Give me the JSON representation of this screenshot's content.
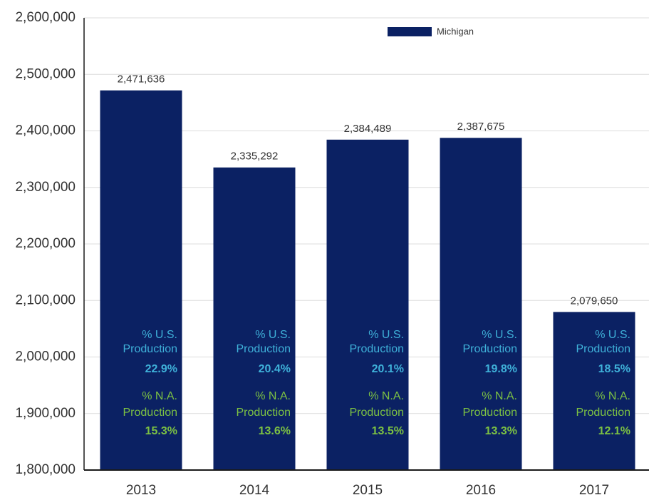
{
  "chart_data": {
    "type": "bar",
    "categories": [
      "2013",
      "2014",
      "2015",
      "2016",
      "2017"
    ],
    "series": [
      {
        "name": "Michigan",
        "color": "#0b2163",
        "values": [
          2471636,
          2335292,
          2384489,
          2387675,
          2079650
        ],
        "value_labels": [
          "2,471,636",
          "2,335,292",
          "2,384,489",
          "2,387,675",
          "2,079,650"
        ]
      }
    ],
    "ylim": [
      1800000,
      2600000
    ],
    "yticks": [
      {
        "value": 1800000,
        "label": "1,800,000"
      },
      {
        "value": 1900000,
        "label": "1,900,000"
      },
      {
        "value": 2000000,
        "label": "2,000,000"
      },
      {
        "value": 2100000,
        "label": "2,100,000"
      },
      {
        "value": 2200000,
        "label": "2,200,000"
      },
      {
        "value": 2300000,
        "label": "2,300,000"
      },
      {
        "value": 2400000,
        "label": "2,400,000"
      },
      {
        "value": 2500000,
        "label": "2,500,000"
      },
      {
        "value": 2600000,
        "label": "2,600,000"
      }
    ],
    "grid": true,
    "legend": "top",
    "annotations": [
      {
        "label": [
          "% U.S.",
          "Production"
        ],
        "color": "#3fb1d9",
        "values": [
          22.9,
          20.4,
          20.1,
          19.8,
          18.5
        ],
        "value_labels": [
          "22.9%",
          "20.4%",
          "20.1%",
          "19.8%",
          "18.5%"
        ]
      },
      {
        "label": [
          "% N.A.",
          "Production"
        ],
        "color": "#7cc143",
        "values": [
          15.3,
          13.6,
          13.5,
          13.3,
          12.1
        ],
        "value_labels": [
          "15.3%",
          "13.6%",
          "13.5%",
          "13.3%",
          "12.1%"
        ]
      }
    ]
  }
}
